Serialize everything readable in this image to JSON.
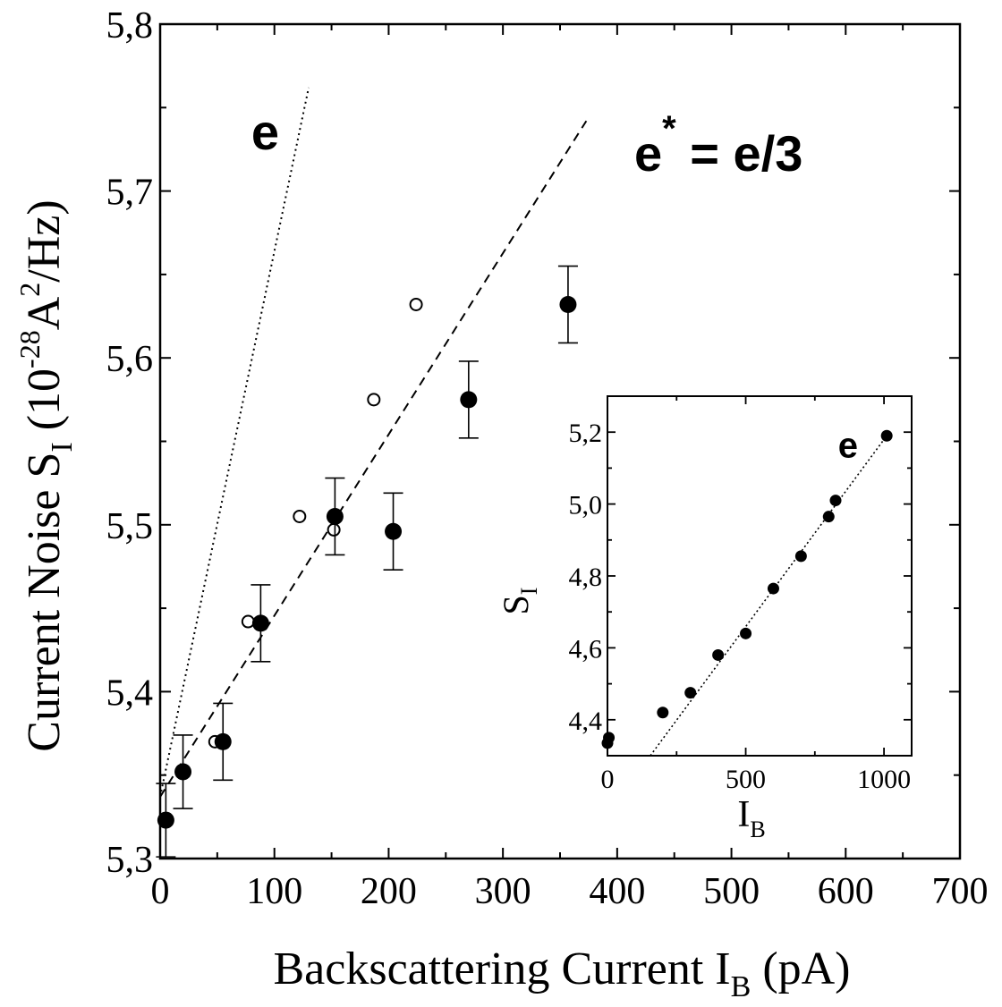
{
  "chart_data": [
    {
      "type": "scatter",
      "ylabel": {
        "main": "Current Noise S",
        "sub": "I",
        "paren": " (10",
        "exp1": "-28",
        "unit": "A",
        "exp2": "2",
        "tail": "/Hz)"
      },
      "xlabel": {
        "main": "Backscattering Current I",
        "sub": "B",
        "tail": " (pA)"
      },
      "xlim": [
        0,
        700
      ],
      "ylim": [
        5.3,
        5.8
      ],
      "xticks": [
        {
          "v": 0,
          "label": "0"
        },
        {
          "v": 100,
          "label": "100"
        },
        {
          "v": 200,
          "label": "200"
        },
        {
          "v": 300,
          "label": "300"
        },
        {
          "v": 400,
          "label": "400"
        },
        {
          "v": 500,
          "label": "500"
        },
        {
          "v": 600,
          "label": "600"
        },
        {
          "v": 700,
          "label": "700"
        }
      ],
      "yticks": [
        {
          "v": 5.3,
          "label": "5,3"
        },
        {
          "v": 5.4,
          "label": "5,4"
        },
        {
          "v": 5.5,
          "label": "5,5"
        },
        {
          "v": 5.6,
          "label": "5,6"
        },
        {
          "v": 5.7,
          "label": "5,7"
        },
        {
          "v": 5.8,
          "label": "5,8"
        }
      ],
      "grid": false,
      "series": [
        {
          "marker": "filled-circle",
          "points": [
            {
              "x": 5,
              "y": 5.323,
              "err": 0.022
            },
            {
              "x": 20,
              "y": 5.352,
              "err": 0.022
            },
            {
              "x": 55,
              "y": 5.37,
              "err": 0.023
            },
            {
              "x": 88,
              "y": 5.441,
              "err": 0.023
            },
            {
              "x": 153,
              "y": 5.505,
              "err": 0.023
            },
            {
              "x": 204,
              "y": 5.496,
              "err": 0.023
            },
            {
              "x": 270,
              "y": 5.575,
              "err": 0.023
            },
            {
              "x": 357,
              "y": 5.632,
              "err": 0.023
            }
          ]
        },
        {
          "marker": "open-circle",
          "points": [
            {
              "x": 6,
              "y": 5.323
            },
            {
              "x": 20,
              "y": 5.352
            },
            {
              "x": 48,
              "y": 5.37
            },
            {
              "x": 77,
              "y": 5.442
            },
            {
              "x": 122,
              "y": 5.505
            },
            {
              "x": 152,
              "y": 5.497
            },
            {
              "x": 187,
              "y": 5.575
            },
            {
              "x": 224,
              "y": 5.632
            }
          ]
        }
      ],
      "lines": [
        {
          "style": "dotted",
          "from": [
            0,
            5.337
          ],
          "to": [
            130,
            5.762
          ]
        },
        {
          "style": "dashed",
          "from": [
            0,
            5.337
          ],
          "to": [
            373,
            5.742
          ]
        }
      ],
      "annotations": [
        {
          "id": "e",
          "text": "e",
          "at": [
            92,
            5.725
          ]
        },
        {
          "id": "e3",
          "text": "e",
          "sup": "*",
          "rest": " = e/3",
          "at": [
            415,
            5.712
          ]
        }
      ]
    },
    {
      "type": "scatter",
      "inset": true,
      "ylabel": {
        "main": "S",
        "sub": "I"
      },
      "xlabel": {
        "main": "I",
        "sub": "B"
      },
      "xlim": [
        0,
        1100
      ],
      "ylim": [
        4.3,
        5.3
      ],
      "xticks": [
        {
          "v": 0,
          "label": "0"
        },
        {
          "v": 500,
          "label": "500"
        },
        {
          "v": 1000,
          "label": "1000"
        }
      ],
      "yticks": [
        {
          "v": 4.4,
          "label": "4,4"
        },
        {
          "v": 4.6,
          "label": "4,6"
        },
        {
          "v": 4.8,
          "label": "4,8"
        },
        {
          "v": 5.0,
          "label": "5,0"
        },
        {
          "v": 5.2,
          "label": "5,2"
        }
      ],
      "grid": false,
      "points": [
        {
          "x": 0,
          "y": 4.335
        },
        {
          "x": 5,
          "y": 4.35
        },
        {
          "x": 200,
          "y": 4.42
        },
        {
          "x": 300,
          "y": 4.475
        },
        {
          "x": 400,
          "y": 4.58
        },
        {
          "x": 500,
          "y": 4.64
        },
        {
          "x": 600,
          "y": 4.765
        },
        {
          "x": 700,
          "y": 4.855
        },
        {
          "x": 800,
          "y": 4.965
        },
        {
          "x": 825,
          "y": 5.01
        },
        {
          "x": 1010,
          "y": 5.19
        }
      ],
      "lines": [
        {
          "style": "dotted",
          "from": [
            155,
            4.3
          ],
          "to": [
            1010,
            5.19
          ]
        }
      ],
      "annotations": [
        {
          "text": "e",
          "at": [
            870,
            5.13
          ]
        }
      ]
    }
  ]
}
